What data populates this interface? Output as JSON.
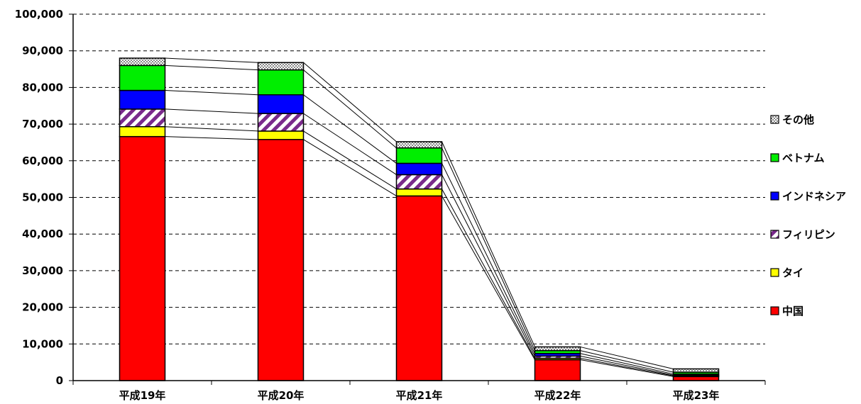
{
  "chart_data": {
    "type": "bar",
    "stacked": true,
    "series_lines": true,
    "categories": [
      "平成19年",
      "平成20年",
      "平成21年",
      "平成22年",
      "平成23年"
    ],
    "series": [
      {
        "name": "中国",
        "color": "#ff0000",
        "pattern": "solid",
        "values": [
          66600,
          65800,
          50400,
          5700,
          1100
        ]
      },
      {
        "name": "タイ",
        "color": "#ffff00",
        "pattern": "solid",
        "values": [
          2700,
          2300,
          1900,
          400,
          200
        ]
      },
      {
        "name": "フィリピン",
        "color": "#7a2a8c",
        "pattern": "hatch",
        "values": [
          4800,
          4800,
          3900,
          600,
          200
        ]
      },
      {
        "name": "インドネシア",
        "color": "#0000ff",
        "pattern": "solid",
        "values": [
          5100,
          5100,
          3100,
          700,
          300
        ]
      },
      {
        "name": "ベトナム",
        "color": "#00ee00",
        "pattern": "solid",
        "values": [
          6800,
          6800,
          4200,
          800,
          500
        ]
      },
      {
        "name": "その他",
        "color": "#bbbbbb",
        "pattern": "dots",
        "values": [
          2000,
          2000,
          1700,
          1000,
          900
        ]
      }
    ],
    "y_ticks": [
      "0",
      "10,000",
      "20,000",
      "30,000",
      "40,000",
      "50,000",
      "60,000",
      "70,000",
      "80,000",
      "90,000",
      "100,000"
    ],
    "ylim": [
      0,
      100000
    ],
    "grid": true,
    "legend_position": "right",
    "title": "",
    "xlabel": "",
    "ylabel": ""
  }
}
